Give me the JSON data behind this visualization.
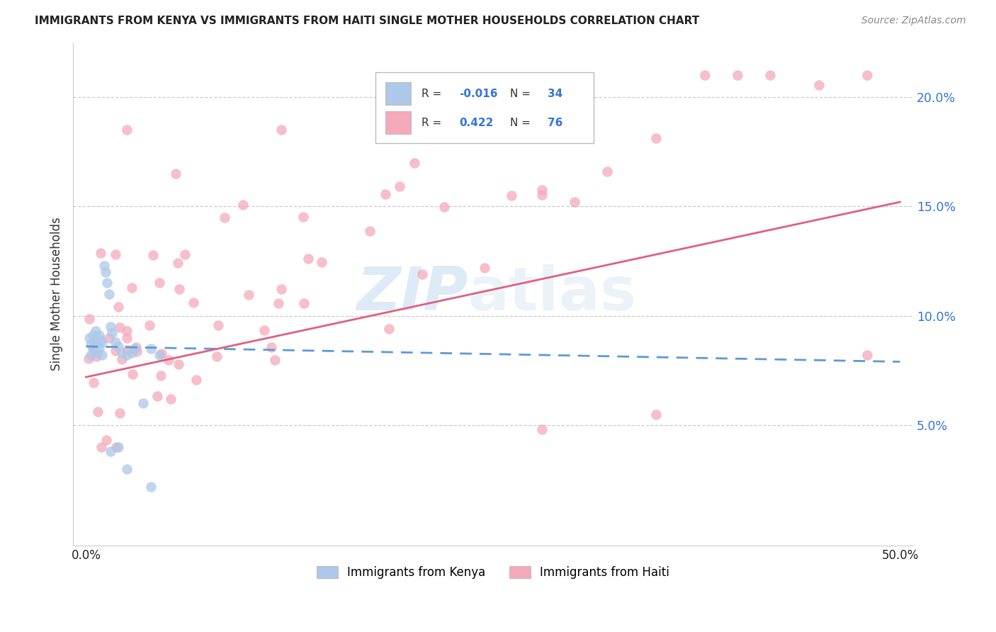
{
  "title": "IMMIGRANTS FROM KENYA VS IMMIGRANTS FROM HAITI SINGLE MOTHER HOUSEHOLDS CORRELATION CHART",
  "source": "Source: ZipAtlas.com",
  "ylabel": "Single Mother Households",
  "xlim": [
    0.0,
    0.5
  ],
  "ylim": [
    0.0,
    0.22
  ],
  "yticks": [
    0.05,
    0.1,
    0.15,
    0.2
  ],
  "ytick_labels": [
    "5.0%",
    "10.0%",
    "15.0%",
    "20.0%"
  ],
  "xtick_labels": [
    "0.0%",
    "",
    "",
    "",
    "",
    "50.0%"
  ],
  "legend_kenya_R": "-0.016",
  "legend_kenya_N": "34",
  "legend_haiti_R": "0.422",
  "legend_haiti_N": "76",
  "kenya_color": "#adc8e8",
  "haiti_color": "#f4aabb",
  "kenya_line_color": "#5b9bd5",
  "haiti_line_color": "#e06080",
  "watermark1": "ZIP",
  "watermark2": "atlas",
  "kenya_line_start_y": 0.086,
  "kenya_line_end_y": 0.079,
  "haiti_line_start_y": 0.072,
  "haiti_line_end_y": 0.152
}
